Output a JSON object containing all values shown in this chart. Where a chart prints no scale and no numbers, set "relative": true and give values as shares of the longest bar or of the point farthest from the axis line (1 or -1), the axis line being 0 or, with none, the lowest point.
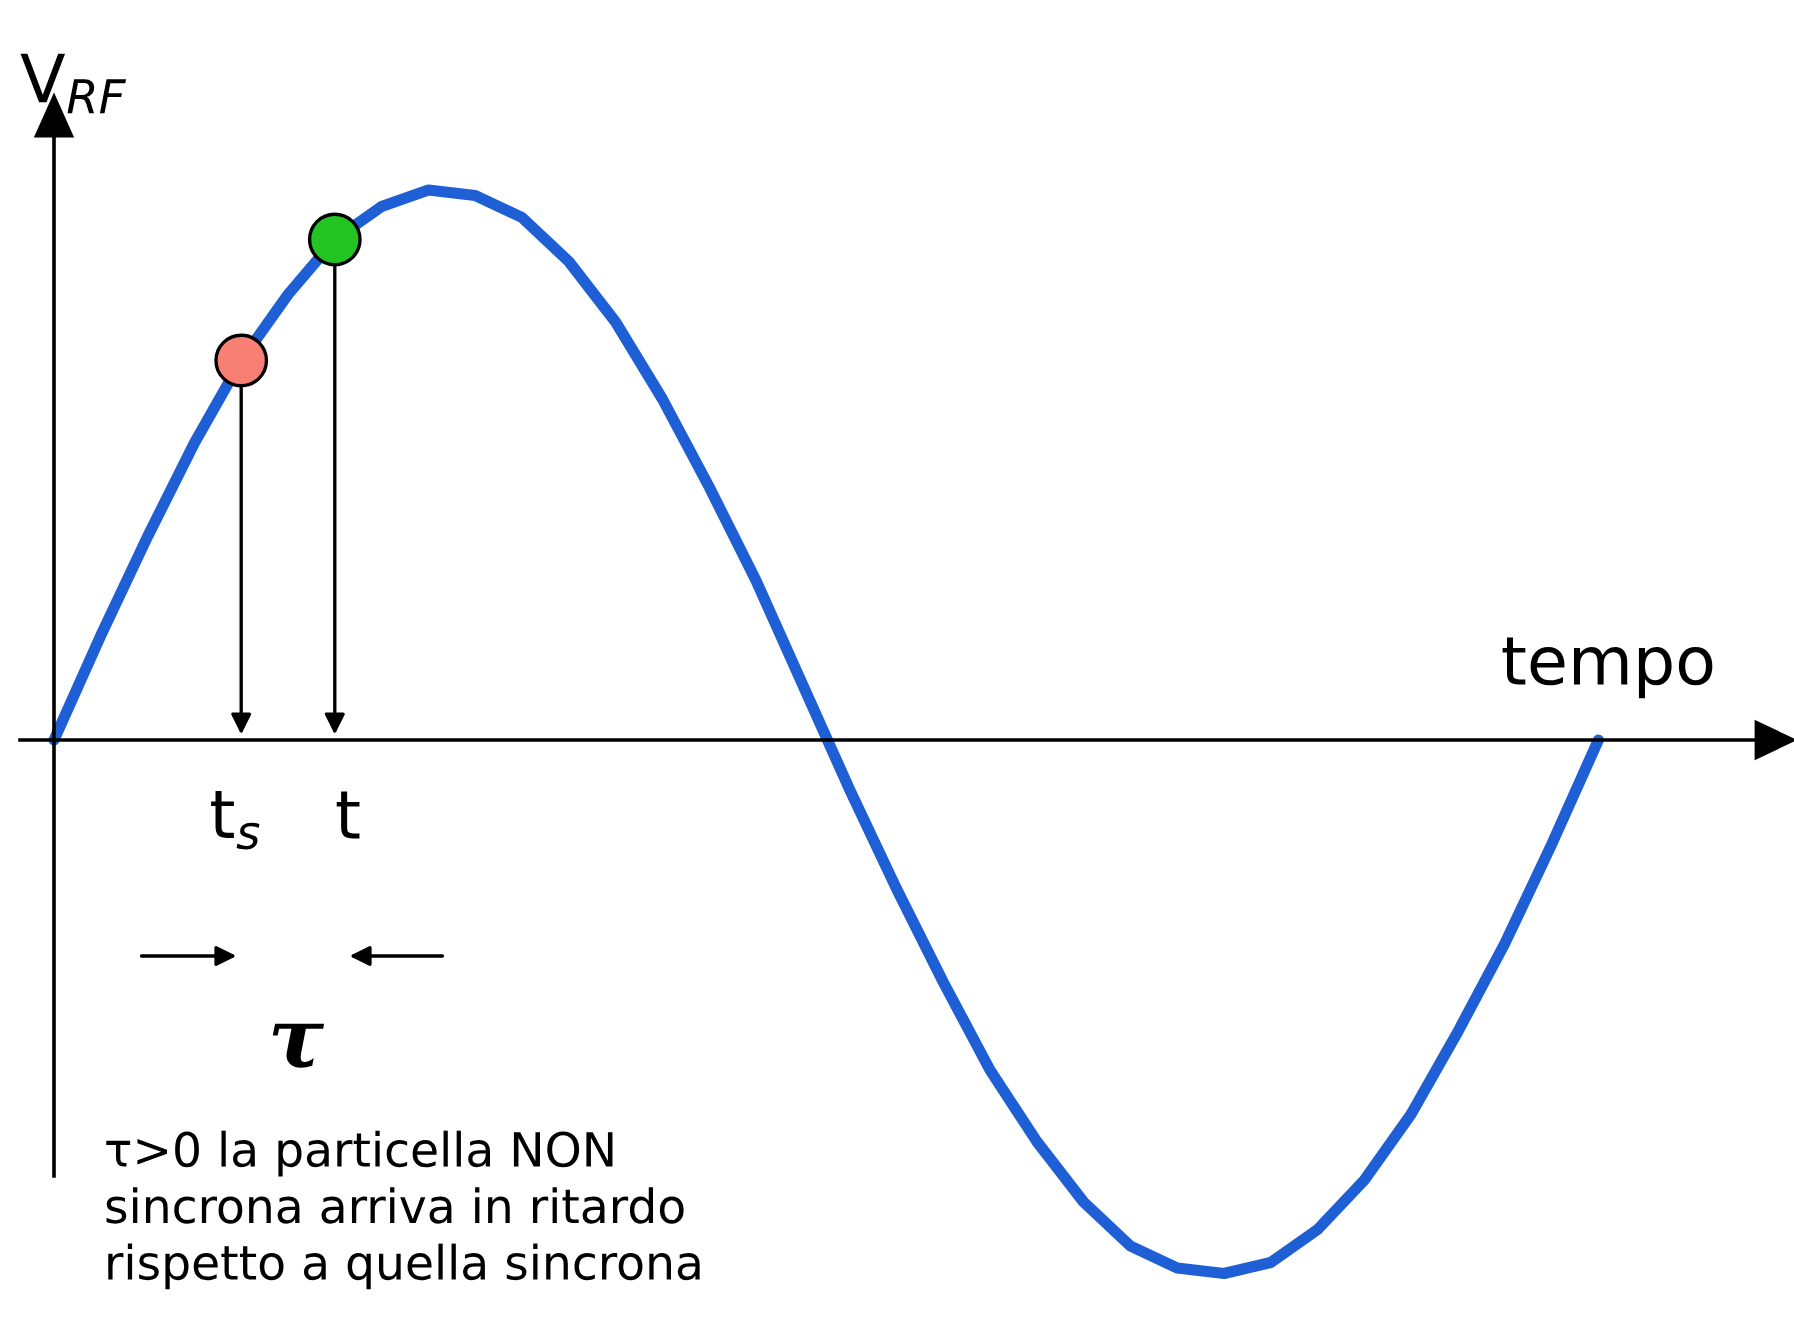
{
  "chart_data": {
    "type": "line",
    "relative": true,
    "categories": [
      null,
      null,
      null,
      null,
      null,
      null,
      null,
      null,
      null,
      null,
      null,
      null,
      null,
      null,
      null,
      null,
      null,
      null,
      null,
      null,
      null,
      null,
      null,
      null,
      null,
      null,
      null,
      null,
      null,
      null,
      null,
      null,
      null,
      null
    ],
    "series": [
      {
        "color": "#1f5fd6",
        "values": [
          0,
          0.19,
          0.37,
          0.54,
          0.69,
          0.81,
          0.91,
          0.97,
          1.0,
          0.99,
          0.95,
          0.87,
          0.76,
          0.62,
          0.46,
          0.29,
          0.1,
          -0.09,
          -0.27,
          -0.44,
          -0.6,
          -0.73,
          -0.84,
          -0.92,
          -0.96,
          -0.97,
          -0.95,
          -0.89,
          -0.8,
          -0.68,
          -0.53,
          -0.37,
          -0.19,
          0
        ],
        "colors": [
          null,
          null,
          null,
          null,
          "#f87f74",
          null,
          "#22c422",
          null,
          null,
          null,
          null,
          null,
          null,
          null,
          null,
          null,
          null,
          null,
          null,
          null,
          null,
          null,
          null,
          null,
          null,
          null,
          null,
          null,
          null,
          null,
          null,
          null,
          null,
          null
        ]
      }
    ],
    "ylabel": "V$_{RF}$",
    "xlabel": "tempo",
    "annotations": [
      "t$_{s}$",
      "t",
      "τ",
      "τ>0 la particella NON\nsincrona arriva in ritardo\nrispetto a quella sincrona"
    ],
    "legend": false
  }
}
